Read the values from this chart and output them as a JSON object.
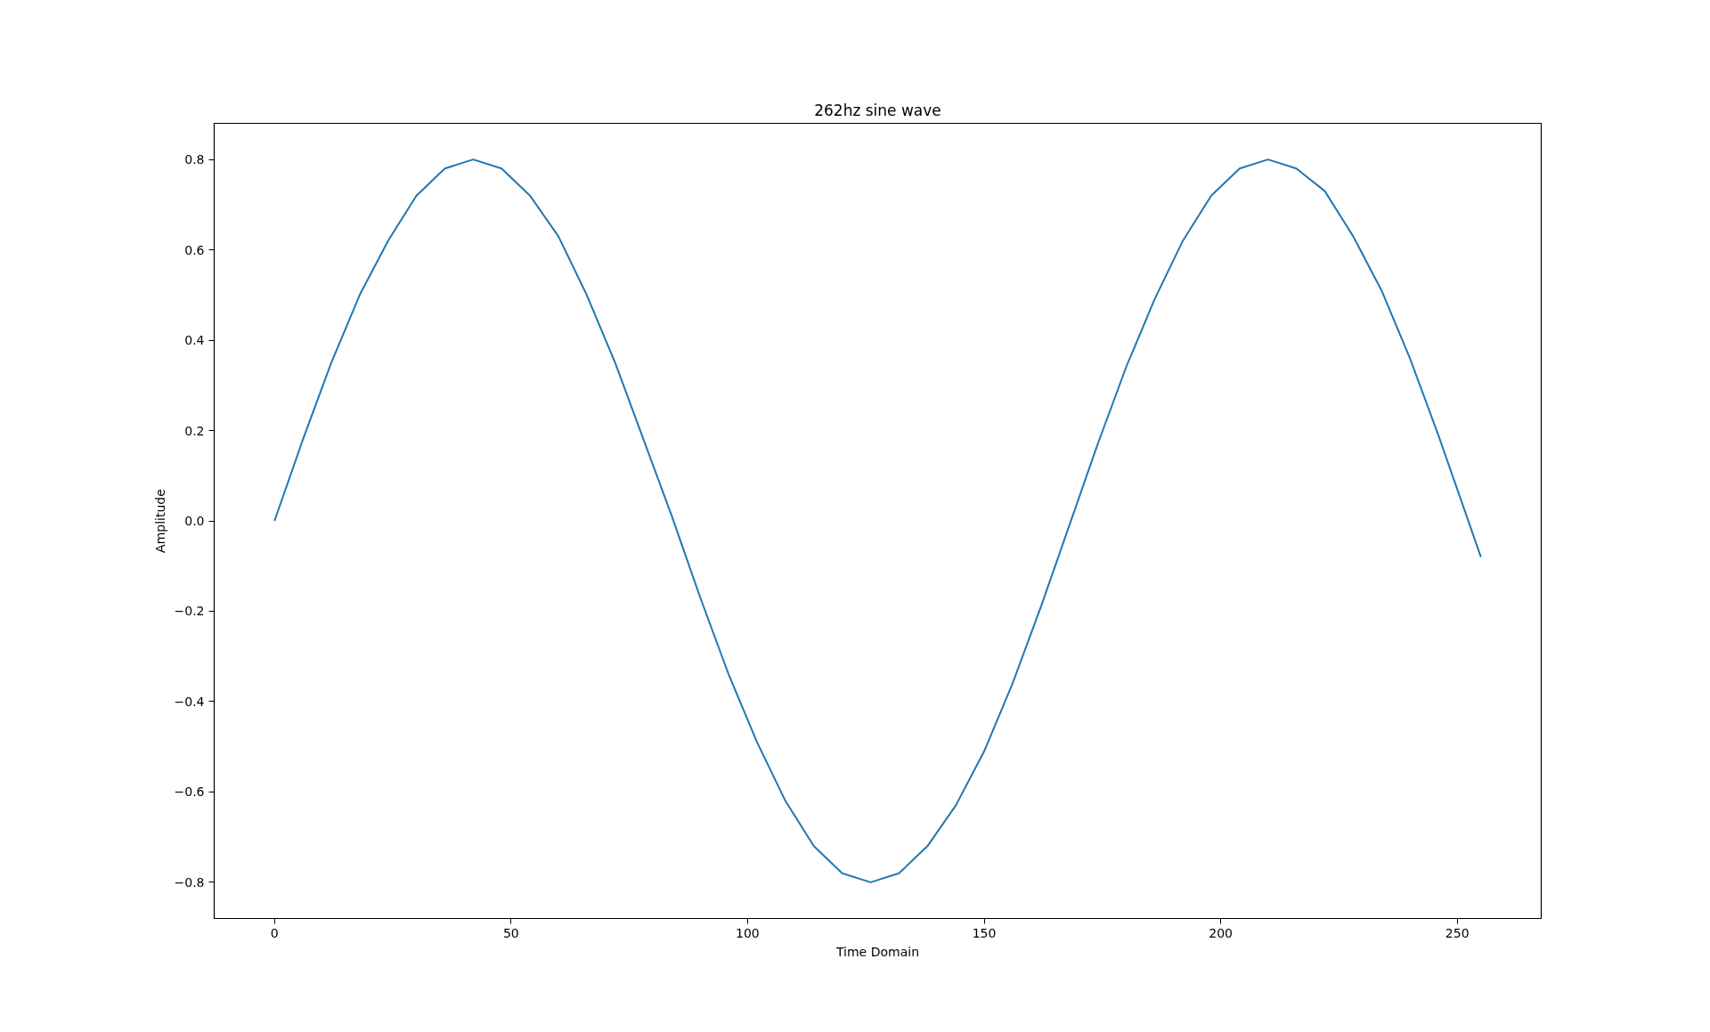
{
  "chart_data": {
    "type": "line",
    "title": "262hz sine wave",
    "xlabel": "Time Domain",
    "ylabel": "Amplitude",
    "x": [
      0,
      6,
      12,
      18,
      24,
      30,
      36,
      42,
      48,
      54,
      60,
      66,
      72,
      78,
      84,
      90,
      96,
      102,
      108,
      114,
      120,
      126,
      132,
      138,
      144,
      150,
      156,
      162,
      168,
      174,
      180,
      186,
      192,
      198,
      204,
      210,
      216,
      222,
      228,
      234,
      240,
      246,
      252,
      255
    ],
    "series": [
      {
        "color": "#1f77b4",
        "values": [
          0,
          0.18,
          0.35,
          0.5,
          0.62,
          0.72,
          0.78,
          0.8,
          0.78,
          0.72,
          0.63,
          0.5,
          0.35,
          0.18,
          0.01,
          -0.17,
          -0.34,
          -0.49,
          -0.62,
          -0.72,
          -0.78,
          -0.8,
          -0.78,
          -0.72,
          -0.63,
          -0.51,
          -0.36,
          -0.19,
          -0.01,
          0.17,
          0.34,
          0.49,
          0.62,
          0.72,
          0.78,
          0.8,
          0.78,
          0.73,
          0.63,
          0.51,
          0.36,
          0.19,
          0.01,
          -0.08
        ]
      }
    ],
    "xlim": [
      -12.75,
      267.75
    ],
    "ylim": [
      -0.88,
      0.88
    ],
    "xticks": [
      0,
      50,
      100,
      150,
      200,
      250
    ],
    "yticks": [
      {
        "value": -0.8,
        "label": "−0.8"
      },
      {
        "value": -0.6,
        "label": "−0.6"
      },
      {
        "value": -0.4,
        "label": "−0.4"
      },
      {
        "value": -0.2,
        "label": "−0.2"
      },
      {
        "value": 0,
        "label": "0.0"
      },
      {
        "value": 0.2,
        "label": "0.2"
      },
      {
        "value": 0.4,
        "label": "0.4"
      },
      {
        "value": 0.6,
        "label": "0.6"
      },
      {
        "value": 0.8,
        "label": "0.8"
      }
    ],
    "grid": false,
    "line_style": "solid"
  }
}
